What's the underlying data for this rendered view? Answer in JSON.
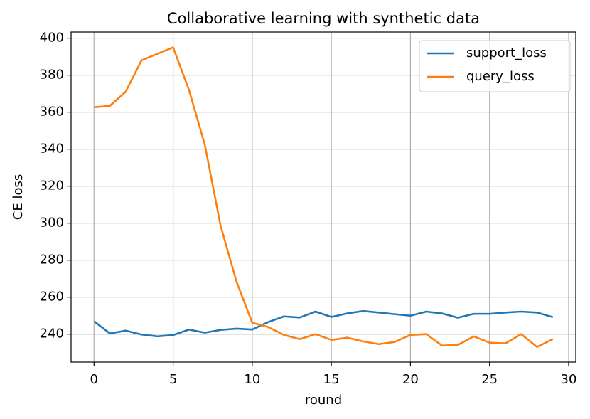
{
  "chart_data": {
    "type": "line",
    "title": "Collaborative learning with synthetic data",
    "x_label": "round",
    "y_label": "CE loss",
    "x": [
      0,
      1,
      2,
      3,
      4,
      5,
      6,
      7,
      8,
      9,
      10,
      11,
      12,
      13,
      14,
      15,
      16,
      17,
      18,
      19,
      20,
      21,
      22,
      23,
      24,
      25,
      26,
      27,
      28,
      29
    ],
    "series": [
      {
        "name": "support_loss",
        "color": "#1f77b4",
        "values": [
          247,
          240.4,
          241.9,
          239.8,
          238.8,
          239.5,
          242.5,
          240.8,
          242.3,
          243,
          242.5,
          246.5,
          249.6,
          249,
          252.2,
          249.3,
          251.2,
          252.5,
          251.7,
          250.8,
          250,
          252.2,
          251.2,
          248.9,
          251,
          251,
          251.7,
          252.2,
          251.7,
          249.2
        ]
      },
      {
        "name": "query_loss",
        "color": "#ff7f0e",
        "values": [
          362.6,
          363.4,
          371,
          388,
          391.5,
          395,
          372,
          342.5,
          298.6,
          268.5,
          246.2,
          243.9,
          239.6,
          237.3,
          240,
          236.9,
          238.1,
          236.1,
          234.6,
          235.8,
          239.6,
          240,
          233.8,
          234.2,
          238.8,
          235.4,
          235,
          240,
          233.1,
          237.3
        ]
      }
    ],
    "xlim": [
      -1.45,
      30.45
    ],
    "xticks": [
      0,
      5,
      10,
      15,
      20,
      25,
      30
    ],
    "ylim": [
      224.9,
      403.3
    ],
    "yticks": [
      240,
      260,
      280,
      300,
      320,
      340,
      360,
      380,
      400
    ],
    "grid": true,
    "legend": "upper-right"
  }
}
